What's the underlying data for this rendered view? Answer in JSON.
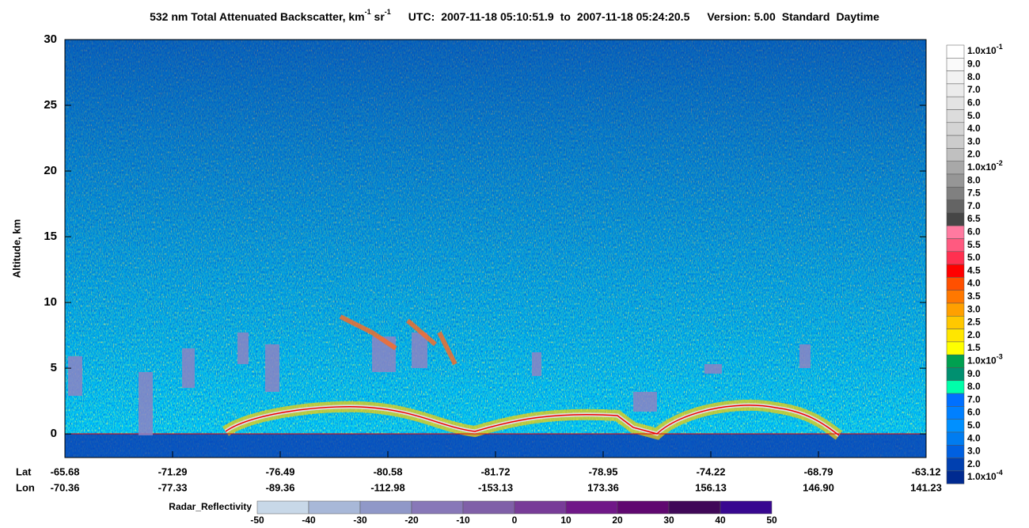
{
  "chart_data": {
    "type": "curtain",
    "title": {
      "main": "532 nm Total Attenuated Backscatter, km",
      "exp1": "-1",
      "sr": " sr",
      "exp2": "-1",
      "utc_label": "UTC:",
      "start": "2007-11-18 05:10:51.9",
      "to": "to",
      "end": "2007-11-18 05:24:20.5",
      "version": "Version: 5.00",
      "product": "Standard",
      "time_of_day": "Daytime"
    },
    "ylabel": "Altitude, km",
    "ylim": [
      -1.8,
      30
    ],
    "yticks": [
      0,
      5,
      10,
      15,
      20,
      25,
      30
    ],
    "x_row_labels": [
      "Lat",
      "Lon"
    ],
    "lat": [
      "-65.68",
      "-71.29",
      "-76.49",
      "-80.58",
      "-81.72",
      "-78.95",
      "-74.22",
      "-68.79",
      "-63.12"
    ],
    "lon": [
      "-70.36",
      "-77.33",
      "-89.36",
      "-112.98",
      "-153.13",
      "173.36",
      "156.13",
      "146.90",
      "141.23"
    ],
    "colorbar": {
      "labels": [
        {
          "text": "1.0x10",
          "exp": "-1"
        },
        "9.0",
        "8.0",
        "7.0",
        "6.0",
        "5.0",
        "4.0",
        "3.0",
        "2.0",
        {
          "text": "1.0x10",
          "exp": "-2"
        },
        "8.0",
        "7.5",
        "7.0",
        "6.5",
        "6.0",
        "5.5",
        "5.0",
        "4.5",
        "4.0",
        "3.5",
        "3.0",
        "2.5",
        "2.0",
        "1.5",
        {
          "text": "1.0x10",
          "exp": "-3"
        },
        "9.0",
        "8.0",
        "7.0",
        "6.0",
        "5.0",
        "4.0",
        "3.0",
        "2.0",
        {
          "text": "1.0x10",
          "exp": "-4"
        }
      ],
      "colors": [
        "#ffffff",
        "#fafafa",
        "#f2f2f2",
        "#ebebeb",
        "#e3e3e3",
        "#dcdcdc",
        "#d4d4d4",
        "#cccccc",
        "#c0c0c0",
        "#a8a8a8",
        "#969696",
        "#808080",
        "#646464",
        "#464646",
        "#ff7aa0",
        "#ff5a80",
        "#ff3050",
        "#ff0000",
        "#ff5000",
        "#ff7800",
        "#ffa000",
        "#ffc800",
        "#ffe600",
        "#ffff00",
        "#00a050",
        "#009070",
        "#00ffaa",
        "#0070ff",
        "#0080ff",
        "#0090ff",
        "#007cf0",
        "#0060e0",
        "#0040b0",
        "#002a90"
      ]
    },
    "radar_colorbar": {
      "label": "Radar_Reflectivity",
      "ticks": [
        -50,
        -40,
        -30,
        -20,
        -10,
        0,
        10,
        20,
        30,
        40,
        50
      ],
      "colors": [
        "#c8d8e8",
        "#a8b8d8",
        "#9098c8",
        "#8878b8",
        "#8060a8",
        "#783c98",
        "#701888",
        "#600870",
        "#400858",
        "#380890"
      ]
    }
  }
}
